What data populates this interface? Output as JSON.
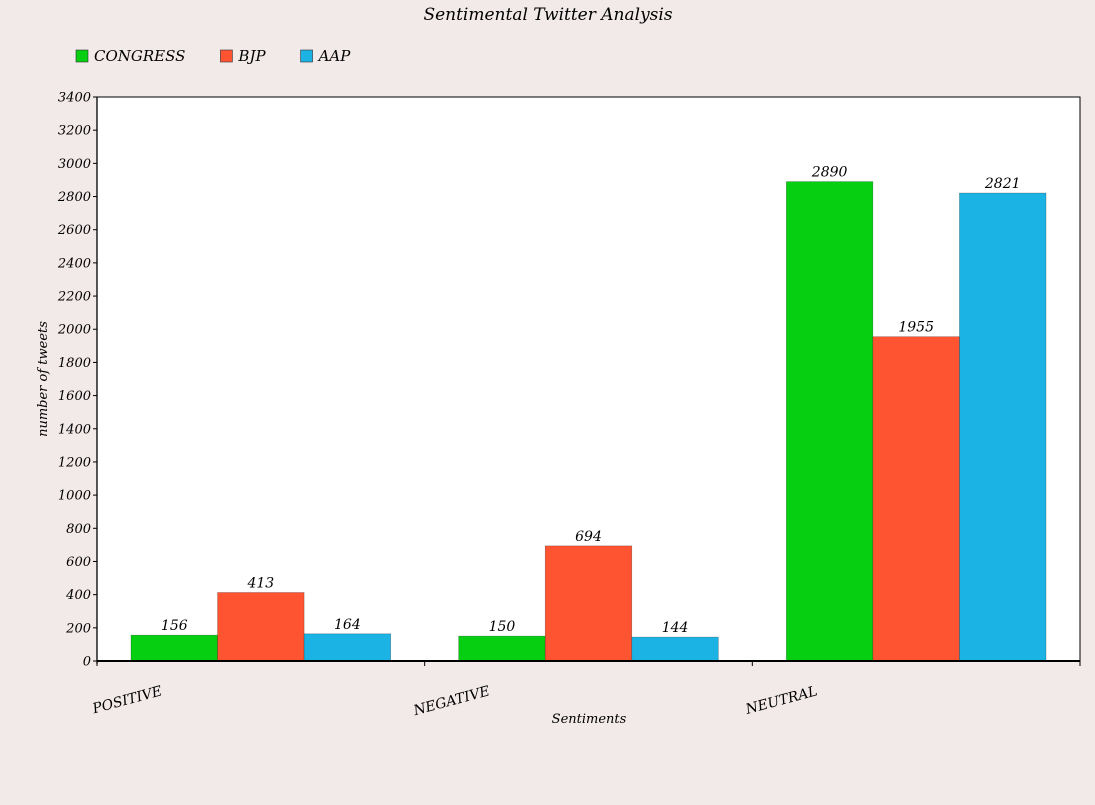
{
  "chart_data": {
    "type": "bar",
    "title": "Sentimental Twitter Analysis",
    "xlabel": "Sentiments",
    "ylabel": "number of tweets",
    "categories": [
      "POSITIVE",
      "NEGATIVE",
      "NEUTRAL"
    ],
    "series": [
      {
        "name": "CONGRESS",
        "color": "#06cf12",
        "values": [
          156,
          150,
          2890
        ]
      },
      {
        "name": "BJP",
        "color": "#ff5431",
        "values": [
          413,
          694,
          1955
        ]
      },
      {
        "name": "AAP",
        "color": "#1ab3e4",
        "values": [
          164,
          144,
          2821
        ]
      }
    ],
    "ylim": [
      0,
      3400
    ],
    "ytick_step": 200,
    "grid": false,
    "legend_position": "top-left",
    "plot_background": "#ffffff",
    "page_background": "#f2e9e9"
  }
}
